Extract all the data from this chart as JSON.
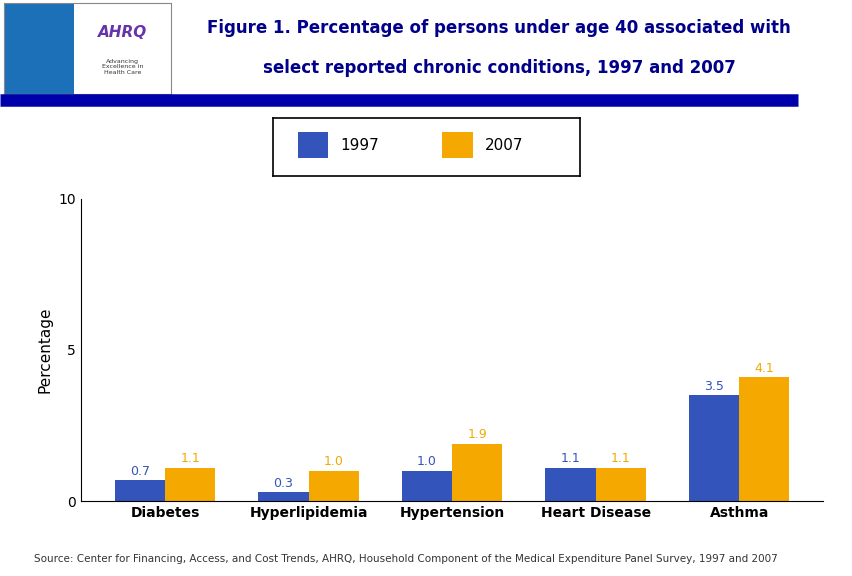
{
  "title_line1": "Figure 1. Percentage of persons under age 40 associated with",
  "title_line2": "select reported chronic conditions, 1997 and 2007",
  "categories": [
    "Diabetes",
    "Hyperlipidemia",
    "Hypertension",
    "Heart Disease",
    "Asthma"
  ],
  "values_1997": [
    0.7,
    0.3,
    1.0,
    1.1,
    3.5
  ],
  "values_2007": [
    1.1,
    1.0,
    1.9,
    1.1,
    4.1
  ],
  "color_1997": "#3355BB",
  "color_2007": "#F5A800",
  "ylabel": "Percentage",
  "ylim": [
    0,
    10
  ],
  "yticks": [
    0,
    5,
    10
  ],
  "legend_labels": [
    "1997",
    "2007"
  ],
  "source_text": "Source: Center for Financing, Access, and Cost Trends, AHRQ, Household Component of the Medical Expenditure Panel Survey, 1997 and 2007",
  "background_color": "#FFFFFF",
  "header_bar_color": "#0000AA",
  "bar_width": 0.35,
  "title_color": "#00008B",
  "ylabel_color": "#000000",
  "tick_label_fontsize": 10,
  "value_label_fontsize": 9,
  "title_fontsize": 12,
  "header_bg": "#1E90FF",
  "logo_bg": "#1E90FF"
}
